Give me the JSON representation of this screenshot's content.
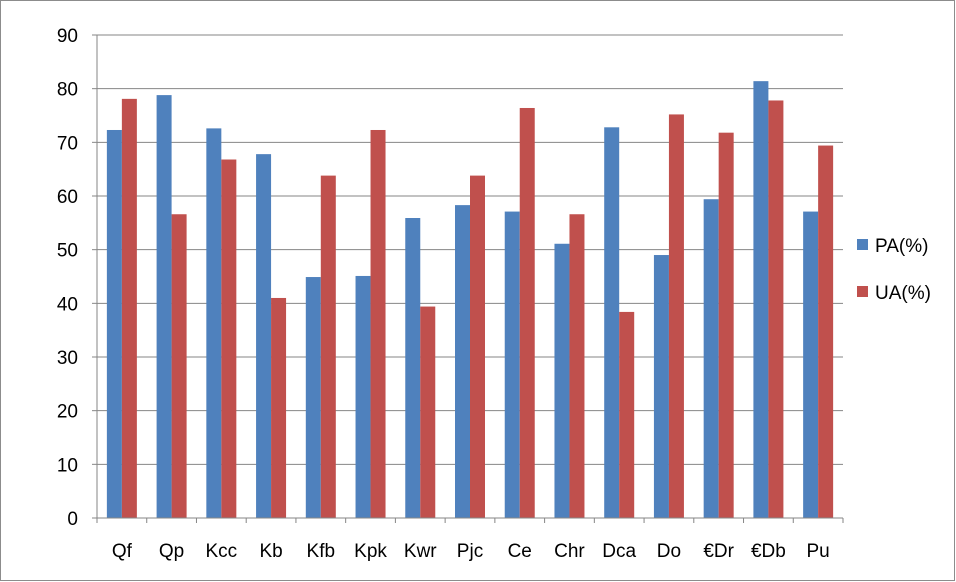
{
  "chart_data": {
    "type": "bar",
    "categories": [
      "Qf",
      "Qp",
      "Kcc",
      "Kb",
      "Kfb",
      "Kpk",
      "Kwr",
      "Pjc",
      "Ce",
      "Chr",
      "Dca",
      "Do",
      "€Dr",
      "€Db",
      "Pu"
    ],
    "series": [
      {
        "name": "PA(%)",
        "color": "#4f81bd",
        "values": [
          72.3,
          78.8,
          72.6,
          67.8,
          44.9,
          45.1,
          55.9,
          58.3,
          57.1,
          51.1,
          72.8,
          49.0,
          59.4,
          81.4,
          57.1
        ]
      },
      {
        "name": "UA(%)",
        "color": "#c0504d",
        "values": [
          78.1,
          56.6,
          66.8,
          41.0,
          63.8,
          72.3,
          39.4,
          63.8,
          76.4,
          56.6,
          38.4,
          75.2,
          71.8,
          77.8,
          69.4
        ]
      }
    ],
    "ylim": [
      0,
      90
    ],
    "yticks": [
      0,
      10,
      20,
      30,
      40,
      50,
      60,
      70,
      80,
      90
    ],
    "grid": "horizontal",
    "legend_position": "right",
    "title": "",
    "xlabel": "",
    "ylabel": ""
  }
}
